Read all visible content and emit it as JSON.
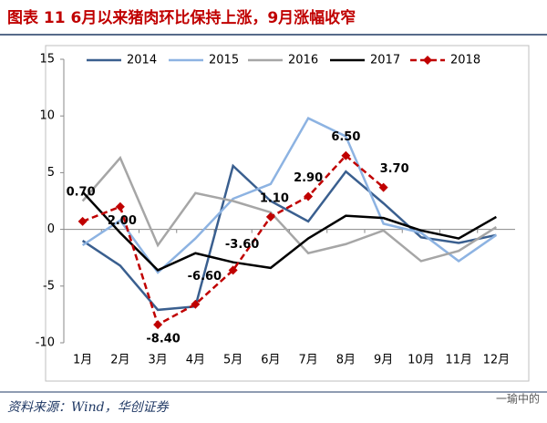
{
  "chart_data": {
    "type": "line",
    "title": "图表 11   6月以来猪肉环比保持上涨，9月涨幅收窄",
    "source": "资料来源：Wind，华创证券",
    "watermark": "一瑜中的",
    "categories": [
      "1月",
      "2月",
      "3月",
      "4月",
      "5月",
      "6月",
      "7月",
      "8月",
      "9月",
      "10月",
      "11月",
      "12月"
    ],
    "ylim": [
      -10,
      15
    ],
    "yticks": [
      -10,
      -5,
      0,
      5,
      10,
      15
    ],
    "series": [
      {
        "name": "2014",
        "color": "#3a5f8f",
        "values": [
          -1,
          -3.2,
          -7.1,
          -6.8,
          5.6,
          2.5,
          0.7,
          5.1,
          2.3,
          -0.7,
          -1.2,
          -0.5
        ]
      },
      {
        "name": "2015",
        "color": "#8db3e2",
        "values": [
          -1.4,
          0.8,
          -3.8,
          -0.8,
          2.7,
          4.0,
          9.8,
          8.2,
          0.5,
          -0.3,
          -2.8,
          -0.5
        ]
      },
      {
        "name": "2016",
        "color": "#a6a6a6",
        "values": [
          2.5,
          6.3,
          -1.4,
          3.2,
          2.5,
          1.5,
          -2.1,
          -1.3,
          -0.1,
          -2.8,
          -1.9,
          0.2
        ]
      },
      {
        "name": "2017",
        "color": "#000000",
        "values": [
          3.3,
          -0.3,
          -3.6,
          -2.1,
          -2.9,
          -3.4,
          -0.8,
          1.2,
          1.0,
          -0.1,
          -0.8,
          1.1
        ]
      },
      {
        "name": "2018",
        "color": "#c00000",
        "dashed": true,
        "markers": true,
        "values": [
          0.7,
          2.0,
          -8.4,
          -6.6,
          -3.6,
          1.1,
          2.9,
          6.5,
          3.7,
          null,
          null,
          null
        ],
        "value_labels": [
          "0.70",
          "2.00",
          "-8.40",
          "-6.60",
          "-3.60",
          "1.10",
          "2.90",
          "6.50",
          "3.70",
          null,
          null,
          null
        ]
      }
    ]
  }
}
